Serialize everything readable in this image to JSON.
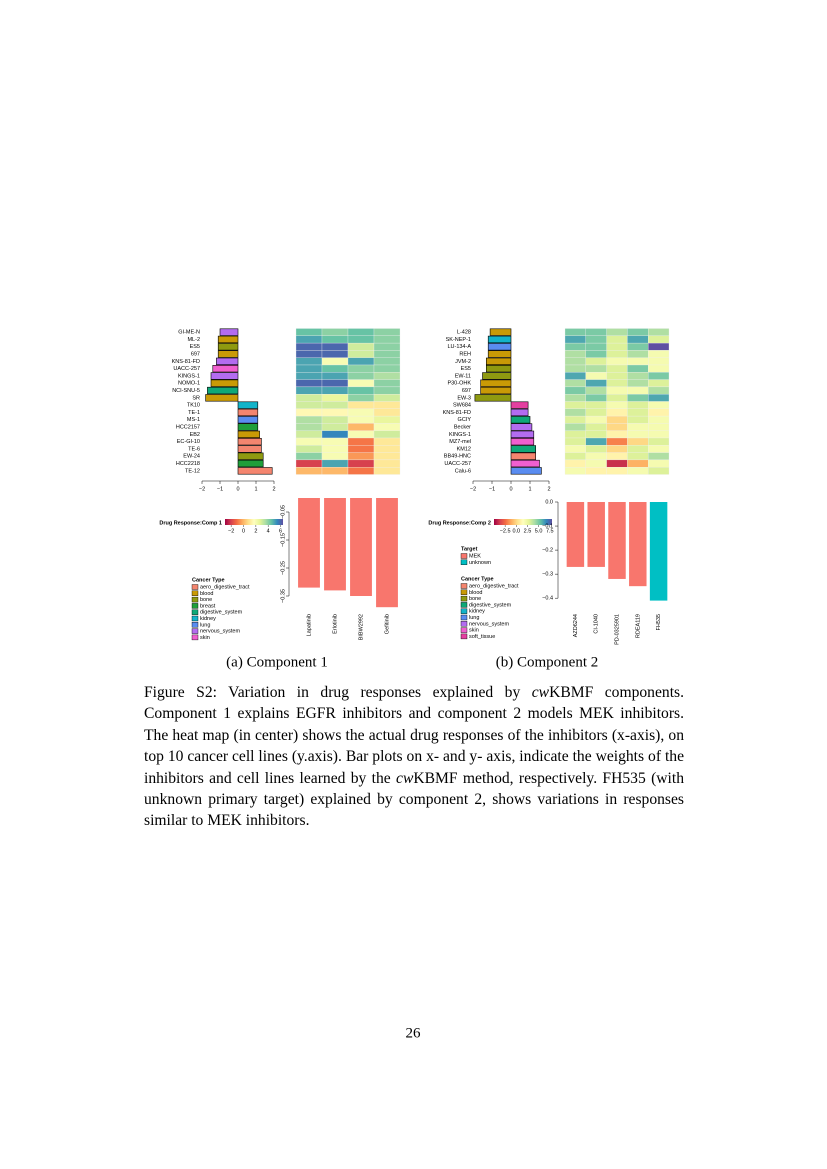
{
  "chart_data": [
    {
      "type": "bar",
      "orientation": "horizontal",
      "categories": [
        "GI-ME-N",
        "ML-2",
        "ES5",
        "697",
        "KNS-81-FD",
        "UACC-257",
        "KINGS-1",
        "NOMO-1",
        "NCI-SNU-5",
        "SR",
        "TK10",
        "TE-1",
        "MS-1",
        "HCC2157",
        "EB2",
        "EC-GI-10",
        "TE-6",
        "EW-24",
        "HCC2218",
        "TE-12"
      ],
      "values": [
        -1.0,
        -1.1,
        -1.1,
        -1.1,
        -1.2,
        -1.4,
        -1.5,
        -1.5,
        -1.7,
        -1.8,
        1.1,
        1.1,
        1.1,
        1.1,
        1.2,
        1.3,
        1.3,
        1.4,
        1.4,
        1.9
      ],
      "colors": [
        "#b36cf0",
        "#c99a06",
        "#8f9a10",
        "#c99a06",
        "#b36cf0",
        "#f05fcf",
        "#b36cf0",
        "#c99a06",
        "#0fa878",
        "#c99a06",
        "#13b3c9",
        "#f4856f",
        "#5a8cf0",
        "#1f9e3a",
        "#c99a06",
        "#f4856f",
        "#f4856f",
        "#8f9a10",
        "#1f9e3a",
        "#f4856f"
      ],
      "xlim": [
        -2,
        2
      ],
      "xticks": [
        {
          "value": -2,
          "label": "−2"
        },
        {
          "value": -1,
          "label": "−1"
        },
        0,
        1,
        2
      ],
      "legend": {
        "title": "Cancer Type",
        "items": [
          {
            "name": "aero_digestive_tract",
            "color": "#f4856f"
          },
          {
            "name": "blood",
            "color": "#c99a06"
          },
          {
            "name": "bone",
            "color": "#8f9a10"
          },
          {
            "name": "breast",
            "color": "#1f9e3a"
          },
          {
            "name": "digestive_system",
            "color": "#0fa878"
          },
          {
            "name": "kidney",
            "color": "#13b3c9"
          },
          {
            "name": "lung",
            "color": "#5a8cf0"
          },
          {
            "name": "nervous_system",
            "color": "#b36cf0"
          },
          {
            "name": "skin",
            "color": "#f05fcf"
          }
        ]
      }
    },
    {
      "type": "heatmap",
      "values": [
        [
          4.5,
          4,
          4.5,
          4
        ],
        [
          5,
          4.5,
          4.5,
          4
        ],
        [
          6,
          6,
          3,
          4
        ],
        [
          6,
          6,
          3,
          4
        ],
        [
          5,
          2,
          5,
          4
        ],
        [
          5,
          4.5,
          4,
          4
        ],
        [
          5,
          5,
          4,
          3.5
        ],
        [
          6,
          6,
          2,
          4
        ],
        [
          5,
          5,
          4.5,
          4
        ],
        [
          3,
          2.5,
          4,
          3
        ],
        [
          3,
          3,
          1,
          1
        ],
        [
          1.5,
          1.5,
          2,
          1
        ],
        [
          3.5,
          3,
          2,
          2.5
        ],
        [
          3.5,
          3,
          0,
          2
        ],
        [
          3,
          5.5,
          2,
          3
        ],
        [
          2,
          2,
          -1,
          1
        ],
        [
          3,
          2,
          -1,
          1
        ],
        [
          4,
          2,
          -0.5,
          1
        ],
        [
          -2,
          5,
          -2,
          1
        ],
        [
          0,
          0,
          -1,
          1
        ]
      ],
      "colorbar_title": "Drug Response:Comp 1",
      "colorbar_lim": [
        -3,
        6.4
      ],
      "colorbar_ticks": [
        {
          "value": -2,
          "label": "−2"
        },
        0,
        2,
        4,
        6
      ],
      "palette": [
        "#9e0142",
        "#d53e4f",
        "#f46d43",
        "#fdae61",
        "#fee08b",
        "#ffffbf",
        "#e6f598",
        "#abdda4",
        "#66c2a5",
        "#3288bd",
        "#5e4fa2"
      ]
    },
    {
      "type": "bar",
      "orientation": "vertical",
      "categories": [
        "Lapatinib",
        "Erlotinib",
        "BIBW2992",
        "Gefitinib"
      ],
      "values": [
        -0.32,
        -0.33,
        -0.35,
        -0.39
      ],
      "colors": [
        "#f8766d",
        "#f8766d",
        "#f8766d",
        "#f8766d"
      ],
      "ylim": [
        -0.4,
        0
      ],
      "yticks": [
        {
          "value": -0.05,
          "label": "−0.05"
        },
        {
          "value": -0.15,
          "label": "−0.15"
        },
        {
          "value": -0.25,
          "label": "−0.25"
        },
        {
          "value": -0.35,
          "label": "−0.35"
        }
      ]
    },
    {
      "type": "bar",
      "orientation": "horizontal",
      "categories": [
        "L-428",
        "SK-NEP-1",
        "LU-134-A",
        "REH",
        "JVM-2",
        "ES5",
        "EW-11",
        "P30-OHK",
        "697",
        "EW-3",
        "SW684",
        "KNS-81-FD",
        "GCIY",
        "Becker",
        "KINGS-1",
        "MZ7-mel",
        "KM12",
        "BB49-HNC",
        "UACC-257",
        "Calu-6"
      ],
      "values": [
        -1.1,
        -1.2,
        -1.2,
        -1.2,
        -1.3,
        -1.3,
        -1.5,
        -1.6,
        -1.6,
        -1.9,
        0.9,
        0.9,
        1.0,
        1.1,
        1.2,
        1.2,
        1.3,
        1.3,
        1.5,
        1.6
      ],
      "colors": [
        "#c99a06",
        "#13b3c9",
        "#5a8cf0",
        "#c99a06",
        "#c99a06",
        "#8f9a10",
        "#8f9a10",
        "#c99a06",
        "#c99a06",
        "#8f9a10",
        "#e43fa0",
        "#b36cf0",
        "#0fa878",
        "#b36cf0",
        "#b36cf0",
        "#f05fcf",
        "#0fa878",
        "#f4856f",
        "#f05fcf",
        "#5a8cf0"
      ],
      "xlim": [
        -2,
        2
      ],
      "xticks": [
        {
          "value": -2,
          "label": "−2"
        },
        {
          "value": -1,
          "label": "−1"
        },
        0,
        1,
        2
      ],
      "legend": {
        "title": "Cancer Type",
        "items": [
          {
            "name": "aero_digestive_tract",
            "color": "#f4856f"
          },
          {
            "name": "blood",
            "color": "#c99a06"
          },
          {
            "name": "bone",
            "color": "#8f9a10"
          },
          {
            "name": "digestive_system",
            "color": "#0fa878"
          },
          {
            "name": "kidney",
            "color": "#13b3c9"
          },
          {
            "name": "lung",
            "color": "#5a8cf0"
          },
          {
            "name": "nervous_system",
            "color": "#b36cf0"
          },
          {
            "name": "skin",
            "color": "#f05fcf"
          },
          {
            "name": "soft_tissue",
            "color": "#e43fa0"
          }
        ]
      }
    },
    {
      "type": "heatmap",
      "values": [
        [
          5,
          5,
          4,
          5,
          4
        ],
        [
          6,
          5,
          3,
          6,
          3
        ],
        [
          5,
          5,
          3,
          5,
          8
        ],
        [
          4,
          5,
          3,
          4,
          2
        ],
        [
          4,
          3,
          2,
          2,
          2
        ],
        [
          4,
          4,
          3,
          5,
          2
        ],
        [
          6,
          2,
          3,
          4,
          5
        ],
        [
          4,
          6,
          3,
          4,
          3
        ],
        [
          5,
          4,
          2,
          2,
          4
        ],
        [
          4,
          5,
          3,
          5,
          6
        ],
        [
          3,
          3,
          2,
          3,
          2
        ],
        [
          4,
          3,
          1,
          3,
          1
        ],
        [
          3,
          2,
          0,
          3,
          2
        ],
        [
          4,
          3,
          0,
          2,
          2
        ],
        [
          3,
          3,
          1,
          2,
          2
        ],
        [
          3,
          6,
          -2,
          0,
          3
        ],
        [
          2,
          3,
          0,
          3,
          2
        ],
        [
          3,
          2,
          1,
          3,
          4
        ],
        [
          1,
          2,
          -4,
          -1,
          2
        ],
        [
          2,
          1,
          1,
          2,
          3
        ]
      ],
      "colorbar_title": "Drug Response:Comp 2",
      "colorbar_lim": [
        -5,
        8
      ],
      "colorbar_ticks": [
        {
          "value": -2.5,
          "label": "−2.5"
        },
        {
          "value": 0,
          "label": "0.0"
        },
        2.5,
        {
          "value": 5,
          "label": "5.0"
        },
        7.5
      ],
      "palette": [
        "#9e0142",
        "#d53e4f",
        "#f46d43",
        "#fdae61",
        "#fee08b",
        "#ffffbf",
        "#e6f598",
        "#abdda4",
        "#66c2a5",
        "#3288bd",
        "#5e4fa2"
      ]
    },
    {
      "type": "bar",
      "orientation": "vertical",
      "categories": [
        "AZD6244",
        "CI-1040",
        "PD-0325901",
        "RDEA119",
        "FH535"
      ],
      "values": [
        -0.27,
        -0.27,
        -0.32,
        -0.35,
        -0.41
      ],
      "colors": [
        "#f8766d",
        "#f8766d",
        "#f8766d",
        "#f8766d",
        "#00bfc4"
      ],
      "ylim": [
        -0.42,
        0
      ],
      "yticks": [
        {
          "value": 0,
          "label": "0.0"
        },
        {
          "value": -0.1,
          "label": "−0.1"
        },
        {
          "value": -0.2,
          "label": "−0.2"
        },
        {
          "value": -0.3,
          "label": "−0.3"
        },
        {
          "value": -0.4,
          "label": "−0.4"
        }
      ],
      "legend": {
        "title": "Target",
        "items": [
          {
            "name": "MEK",
            "color": "#f8766d"
          },
          {
            "name": "unknown",
            "color": "#00bfc4"
          }
        ]
      }
    }
  ],
  "subcaptions": [
    "(a) Component 1",
    "(b) Component 2"
  ],
  "caption": [
    "Figure S2: Variation in drug responses explained by ",
    "cw",
    "KBMF components. Component 1 explains EGFR inhibitors and component 2 models MEK inhibitors. The heat map (in center) shows the actual drug responses of the inhibitors (x-axis), on top 10 cancer cell lines (y.axis). Bar plots on x- and y- axis, indicate the weights of the inhibitors and cell lines learned by the ",
    "cw",
    "KBMF method, respectively. FH535 (with unknown primary target) explained by component 2, shows variations in responses similar to MEK inhibitors."
  ],
  "page_number": "26"
}
